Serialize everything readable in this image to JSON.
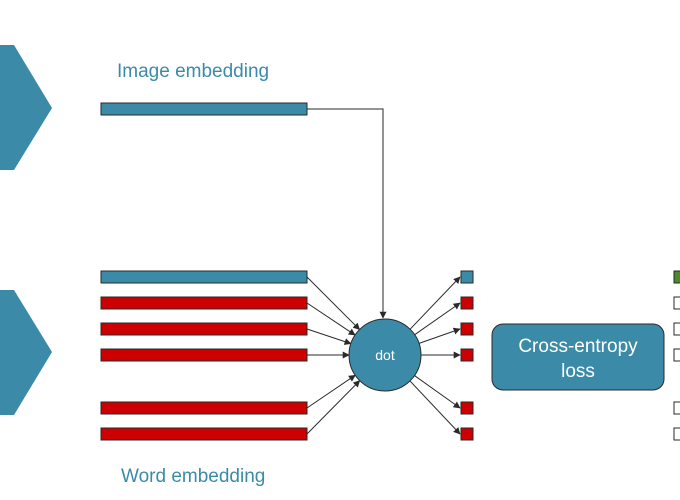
{
  "labels": {
    "image_embedding": "Image embedding",
    "word_embedding": "Word embedding",
    "dot": "dot",
    "loss_line1": "Cross-entropy",
    "loss_line2": "loss"
  },
  "colors": {
    "teal": "#3b8ba8",
    "red": "#cc0000",
    "green": "#4a8a2a",
    "stroke": "#2a2a2a"
  },
  "word_rows": [
    {
      "type": "positive"
    },
    {
      "type": "negative"
    },
    {
      "type": "negative"
    },
    {
      "type": "negative"
    },
    {
      "type": "negative"
    },
    {
      "type": "negative"
    }
  ]
}
